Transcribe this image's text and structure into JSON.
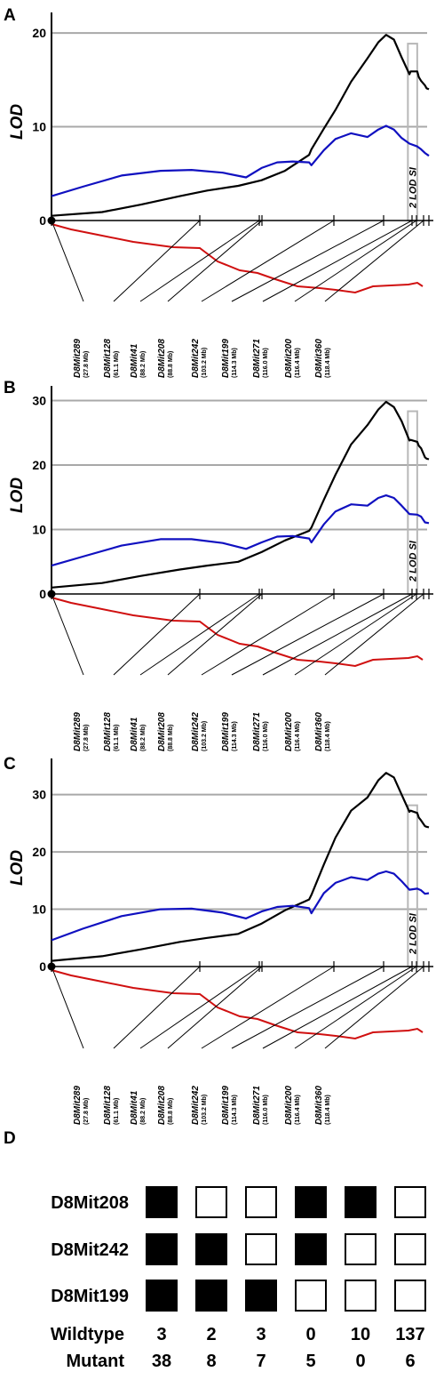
{
  "panel_labels": [
    "A",
    "B",
    "C",
    "D"
  ],
  "chart_data": [
    {
      "type": "line",
      "panel": "A",
      "ylabel": "LOD",
      "yticks": [
        0,
        10,
        20
      ],
      "ylim": [
        0,
        22
      ],
      "grid": true,
      "support_interval_label": "2 LOD SI",
      "support_interval_mb": [
        113.6,
        116.0
      ],
      "series": [
        {
          "color": "#000000",
          "x": [
            22,
            35,
            45,
            55,
            62,
            70,
            76,
            82,
            88.2,
            88.8,
            92,
            95,
            99,
            103.2,
            106,
            108,
            110,
            112,
            114,
            114.3,
            116,
            116.4,
            117,
            118,
            118.4,
            119
          ],
          "y": [
            0.5,
            0.9,
            1.7,
            2.6,
            3.2,
            3.7,
            4.3,
            5.3,
            7.0,
            7.6,
            9.8,
            11.8,
            14.8,
            17.3,
            19.0,
            19.8,
            19.3,
            17.4,
            15.6,
            15.9,
            15.9,
            15.3,
            14.9,
            14.4,
            14.1,
            14.0
          ]
        },
        {
          "color": "#1010c0",
          "x": [
            22,
            30,
            40,
            50,
            58,
            66,
            72,
            76,
            80,
            84,
            88.2,
            88.8,
            92,
            95,
            99,
            103.2,
            106,
            108,
            110,
            112,
            114,
            116,
            117,
            118,
            119
          ],
          "y": [
            2.6,
            3.6,
            4.8,
            5.3,
            5.4,
            5.1,
            4.6,
            5.6,
            6.2,
            6.3,
            6.2,
            5.9,
            7.5,
            8.7,
            9.3,
            8.9,
            9.7,
            10.1,
            9.7,
            8.8,
            8.2,
            7.9,
            7.6,
            7.2,
            6.9
          ]
        }
      ]
    },
    {
      "type": "line",
      "panel": "B",
      "ylabel": "LOD",
      "yticks": [
        0,
        10,
        20,
        30
      ],
      "ylim": [
        0,
        32
      ],
      "grid": true,
      "support_interval_label": "2 LOD SI",
      "support_interval_mb": [
        113.6,
        116.0
      ],
      "series": [
        {
          "color": "#000000",
          "x": [
            22,
            35,
            45,
            55,
            62,
            70,
            76,
            82,
            88.2,
            88.8,
            92,
            95,
            99,
            103.2,
            106,
            108,
            110,
            112,
            114,
            114.3,
            116,
            116.4,
            117,
            118,
            118.4,
            119
          ],
          "y": [
            1.0,
            1.7,
            2.8,
            3.8,
            4.4,
            5.0,
            6.5,
            8.3,
            9.8,
            10.3,
            14.6,
            18.5,
            23.2,
            26.2,
            28.6,
            29.8,
            29.0,
            26.8,
            23.8,
            23.9,
            23.6,
            23.0,
            22.6,
            21.2,
            21.0,
            20.9
          ]
        },
        {
          "color": "#1010c0",
          "x": [
            22,
            30,
            40,
            50,
            58,
            66,
            72,
            76,
            80,
            84,
            88.2,
            88.8,
            92,
            95,
            99,
            103.2,
            106,
            108,
            110,
            112,
            114,
            116,
            117,
            118,
            119
          ],
          "y": [
            4.4,
            5.8,
            7.5,
            8.5,
            8.5,
            7.9,
            7.0,
            8.0,
            8.9,
            9.0,
            8.6,
            8.0,
            10.8,
            12.8,
            13.9,
            13.7,
            14.9,
            15.3,
            14.9,
            13.7,
            12.4,
            12.3,
            12.0,
            11.1,
            11.0
          ]
        }
      ]
    },
    {
      "type": "line",
      "panel": "C",
      "ylabel": "LOD",
      "yticks": [
        0,
        10,
        20,
        30
      ],
      "ylim": [
        0,
        36
      ],
      "grid": true,
      "support_interval_label": "2 LOD SI",
      "support_interval_mb": [
        113.6,
        116.0
      ],
      "series": [
        {
          "color": "#000000",
          "x": [
            22,
            35,
            45,
            55,
            62,
            70,
            76,
            82,
            88.2,
            88.8,
            92,
            95,
            99,
            103.2,
            106,
            108,
            110,
            112,
            114,
            114.3,
            116,
            116.4,
            117,
            118,
            118.4,
            119
          ],
          "y": [
            1.0,
            1.8,
            3.0,
            4.3,
            5.0,
            5.7,
            7.5,
            9.8,
            11.7,
            12.5,
            17.8,
            22.5,
            27.2,
            29.5,
            32.5,
            33.8,
            33.0,
            30.0,
            27.0,
            27.2,
            26.8,
            26.0,
            25.5,
            24.5,
            24.4,
            24.3
          ]
        },
        {
          "color": "#1010c0",
          "x": [
            22,
            30,
            40,
            50,
            58,
            66,
            72,
            76,
            80,
            84,
            88.2,
            88.8,
            92,
            95,
            99,
            103.2,
            106,
            108,
            110,
            112,
            114,
            116,
            117,
            118,
            119
          ],
          "y": [
            4.6,
            6.6,
            8.8,
            10.0,
            10.1,
            9.4,
            8.4,
            9.6,
            10.4,
            10.6,
            10.2,
            9.3,
            12.8,
            14.6,
            15.6,
            15.1,
            16.2,
            16.6,
            16.2,
            14.9,
            13.4,
            13.6,
            13.3,
            12.7,
            12.8
          ]
        }
      ]
    }
  ],
  "markers": [
    {
      "name": "D8Mit289",
      "pos": "(27.8 Mb)"
    },
    {
      "name": "D8Mit128",
      "pos": "(61.1 Mb)"
    },
    {
      "name": "D8Mit41",
      "pos": "(88.2 Mb)"
    },
    {
      "name": "D8Mit208",
      "pos": "(88.8 Mb)"
    },
    {
      "name": "D8Mit242",
      "pos": "(103.2 Mb)"
    },
    {
      "name": "D8Mit199",
      "pos": "(114.3 Mb)"
    },
    {
      "name": "D8Mit271",
      "pos": "(116.0 Mb)"
    },
    {
      "name": "D8Mit200",
      "pos": "(116.4 Mb)"
    },
    {
      "name": "D8Mit360",
      "pos": "(118.4 Mb)"
    }
  ],
  "haplotypes": {
    "rows": [
      {
        "label": "D8Mit208",
        "cells": [
          true,
          false,
          false,
          true,
          true,
          false
        ]
      },
      {
        "label": "D8Mit242",
        "cells": [
          true,
          true,
          false,
          true,
          false,
          false
        ]
      },
      {
        "label": "D8Mit199",
        "cells": [
          true,
          true,
          true,
          false,
          false,
          false
        ]
      }
    ],
    "counts": [
      {
        "label": "Wildtype",
        "values": [
          "3",
          "2",
          "3",
          "0",
          "10",
          "137"
        ]
      },
      {
        "label": "Mutant",
        "values": [
          "38",
          "8",
          "7",
          "5",
          "0",
          "6"
        ]
      }
    ]
  }
}
